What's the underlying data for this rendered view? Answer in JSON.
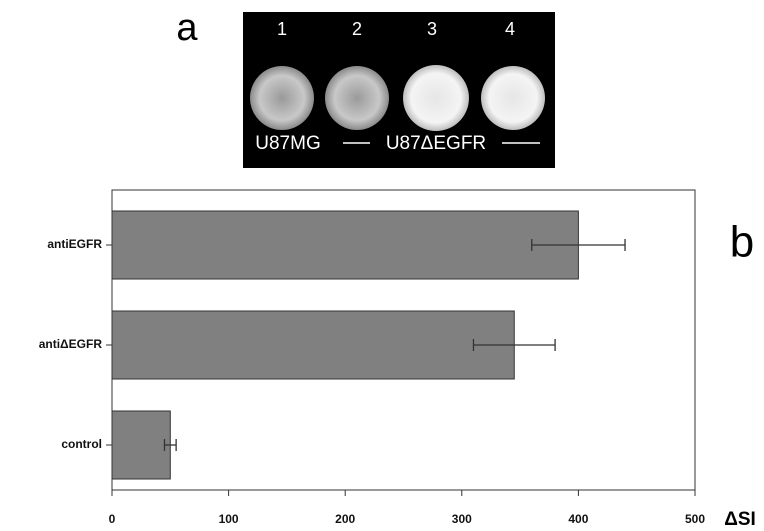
{
  "panel_a": {
    "label": "a",
    "lanes": [
      "1",
      "2",
      "3",
      "4"
    ],
    "caption_left": "U87MG",
    "caption_right": "U87ΔEGFR"
  },
  "chart_data": {
    "type": "bar",
    "orientation": "horizontal",
    "label": "b",
    "categories": [
      "antiEGFR",
      "antiΔEGFR",
      "control"
    ],
    "values": [
      400,
      345,
      50
    ],
    "errors": [
      40,
      35,
      5
    ],
    "color": "#808080",
    "x_label": "ΔSI",
    "xlim": [
      0,
      500
    ],
    "xticks": [
      0,
      100,
      200,
      300,
      400,
      500
    ]
  }
}
